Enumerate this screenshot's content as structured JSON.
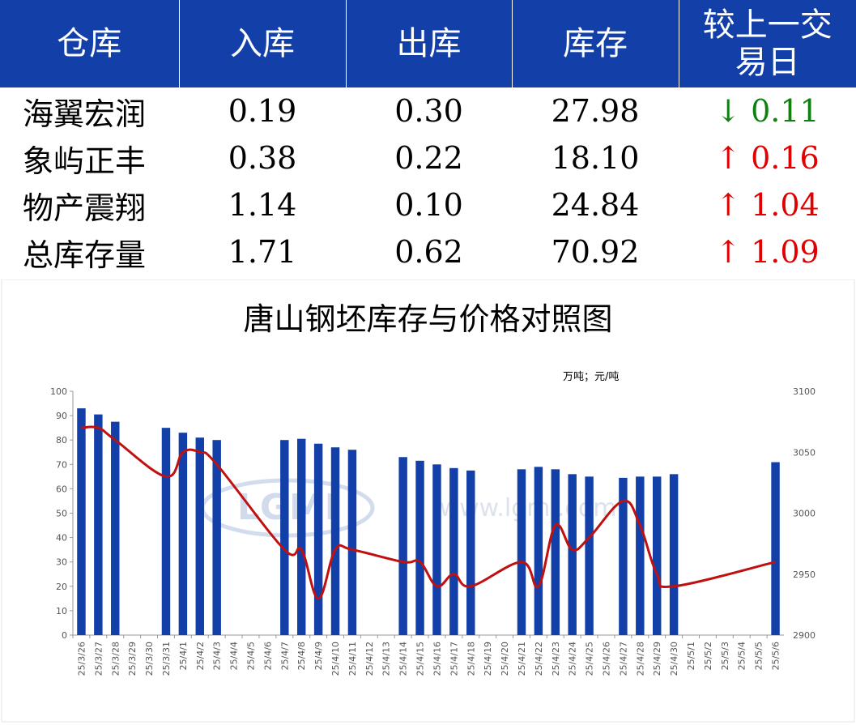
{
  "table": {
    "headers": [
      "仓库",
      "入库",
      "出库",
      "库存",
      "较上一交易日"
    ],
    "rows": [
      {
        "name": "海翼宏润",
        "in": "0.19",
        "out": "0.30",
        "stock": "27.98",
        "dir": "down",
        "arrow": "↓",
        "change": "0.11"
      },
      {
        "name": "象屿正丰",
        "in": "0.38",
        "out": "0.22",
        "stock": "18.10",
        "dir": "up",
        "arrow": "↑",
        "change": "0.16"
      },
      {
        "name": "物产震翔",
        "in": "1.14",
        "out": "0.10",
        "stock": "24.84",
        "dir": "up",
        "arrow": "↑",
        "change": "1.04"
      },
      {
        "name": "总库存量",
        "in": "1.71",
        "out": "0.62",
        "stock": "70.92",
        "dir": "up",
        "arrow": "↑",
        "change": "1.09"
      }
    ],
    "colors": {
      "header_bg": "#1340a8",
      "up": "#e00000",
      "down": "#108010"
    }
  },
  "chart_data": {
    "type": "bar",
    "title": "唐山钢坯库存与价格对照图",
    "unit_label": "万吨；元/吨",
    "watermark": "LGMI",
    "watermark_url": "www.lgmi.com",
    "ylim_left": [
      0,
      100
    ],
    "yticks_left": [
      "0",
      "10",
      "20",
      "30",
      "40",
      "50",
      "60",
      "70",
      "80",
      "90",
      "100"
    ],
    "ylim_right": [
      2900,
      3100
    ],
    "yticks_right": [
      "2900",
      "2950",
      "3000",
      "3050",
      "3100"
    ],
    "categories": [
      "25/3/26",
      "25/3/27",
      "25/3/28",
      "25/3/29",
      "25/3/30",
      "25/3/31",
      "25/4/1",
      "25/4/2",
      "25/4/3",
      "25/4/4",
      "25/4/5",
      "25/4/6",
      "25/4/7",
      "25/4/8",
      "25/4/9",
      "25/4/10",
      "25/4/11",
      "25/4/12",
      "25/4/13",
      "25/4/14",
      "25/4/15",
      "25/4/16",
      "25/4/17",
      "25/4/18",
      "25/4/19",
      "25/4/20",
      "25/4/21",
      "25/4/22",
      "25/4/23",
      "25/4/24",
      "25/4/25",
      "25/4/26",
      "25/4/27",
      "25/4/28",
      "25/4/29",
      "25/4/30",
      "25/5/1",
      "25/5/2",
      "25/5/3",
      "25/5/4",
      "25/5/5",
      "25/5/6"
    ],
    "series": [
      {
        "kind": "bar",
        "axis": "left",
        "color": "#1340a8",
        "values": [
          93,
          90.5,
          87.5,
          null,
          null,
          85,
          83,
          81,
          80,
          null,
          null,
          null,
          80,
          80.5,
          78.5,
          77,
          76,
          null,
          null,
          73,
          71.5,
          70,
          68.5,
          67.5,
          null,
          null,
          68,
          69,
          68,
          66,
          65,
          null,
          64.5,
          65,
          65,
          66,
          null,
          null,
          null,
          null,
          null,
          70.92
        ]
      },
      {
        "kind": "line",
        "axis": "right",
        "color": "#c01010",
        "values": [
          3070,
          3070,
          3060,
          null,
          null,
          3030,
          3050,
          3050,
          3040,
          null,
          null,
          null,
          2970,
          2970,
          2930,
          2970,
          2970,
          null,
          null,
          2960,
          2960,
          2940,
          2950,
          2940,
          null,
          null,
          2960,
          2940,
          2990,
          2970,
          2980,
          null,
          3010,
          2990,
          2950,
          2940,
          null,
          null,
          null,
          null,
          null,
          2960
        ]
      }
    ]
  }
}
